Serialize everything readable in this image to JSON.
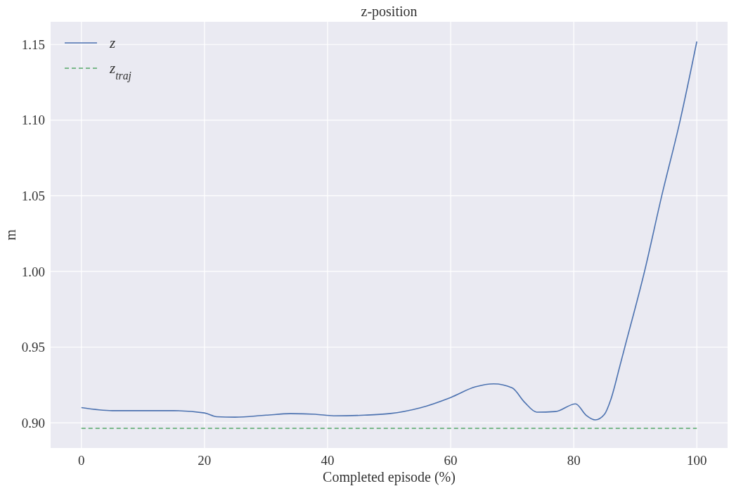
{
  "chart_data": {
    "type": "line",
    "title": "z-position",
    "xlabel": "Completed episode (%)",
    "ylabel": "m",
    "xlim": [
      -5,
      105
    ],
    "xticks": [
      0,
      20,
      40,
      60,
      80,
      100
    ],
    "ylim": [
      0.8833,
      1.165
    ],
    "yticks": [
      {
        "value": 0.9,
        "label": "0.90"
      },
      {
        "value": 0.95,
        "label": "0.95"
      },
      {
        "value": 1.0,
        "label": "1.00"
      },
      {
        "value": 1.05,
        "label": "1.05"
      },
      {
        "value": 1.1,
        "label": "1.10"
      },
      {
        "value": 1.15,
        "label": "1.15"
      }
    ],
    "grid": true,
    "legend": "top left",
    "series": [
      {
        "name": "z",
        "color": "#4c72b0",
        "line_style": "solid",
        "x": [
          0,
          5,
          10,
          15,
          20,
          22,
          25,
          30,
          34,
          38,
          41,
          46,
          50,
          55,
          60,
          64,
          67,
          70,
          72,
          74,
          77,
          80.3,
          82,
          83.5,
          85,
          86,
          87.5,
          88.3,
          91.5,
          94.3,
          97.3,
          100
        ],
        "values": [
          0.91,
          0.908,
          0.908,
          0.908,
          0.9065,
          0.904,
          0.9037,
          0.905,
          0.906,
          0.9056,
          0.9046,
          0.905,
          0.906,
          0.9098,
          0.9167,
          0.9237,
          0.9257,
          0.923,
          0.9136,
          0.907,
          0.9074,
          0.9125,
          0.905,
          0.9019,
          0.9056,
          0.915,
          0.9376,
          0.95,
          1.0,
          1.05,
          1.1,
          1.152
        ]
      },
      {
        "name": "z$_{traj}$",
        "color": "#55a868",
        "line_style": "dashed",
        "x": [
          0,
          100
        ],
        "values": [
          0.8963,
          0.8963
        ]
      }
    ]
  }
}
